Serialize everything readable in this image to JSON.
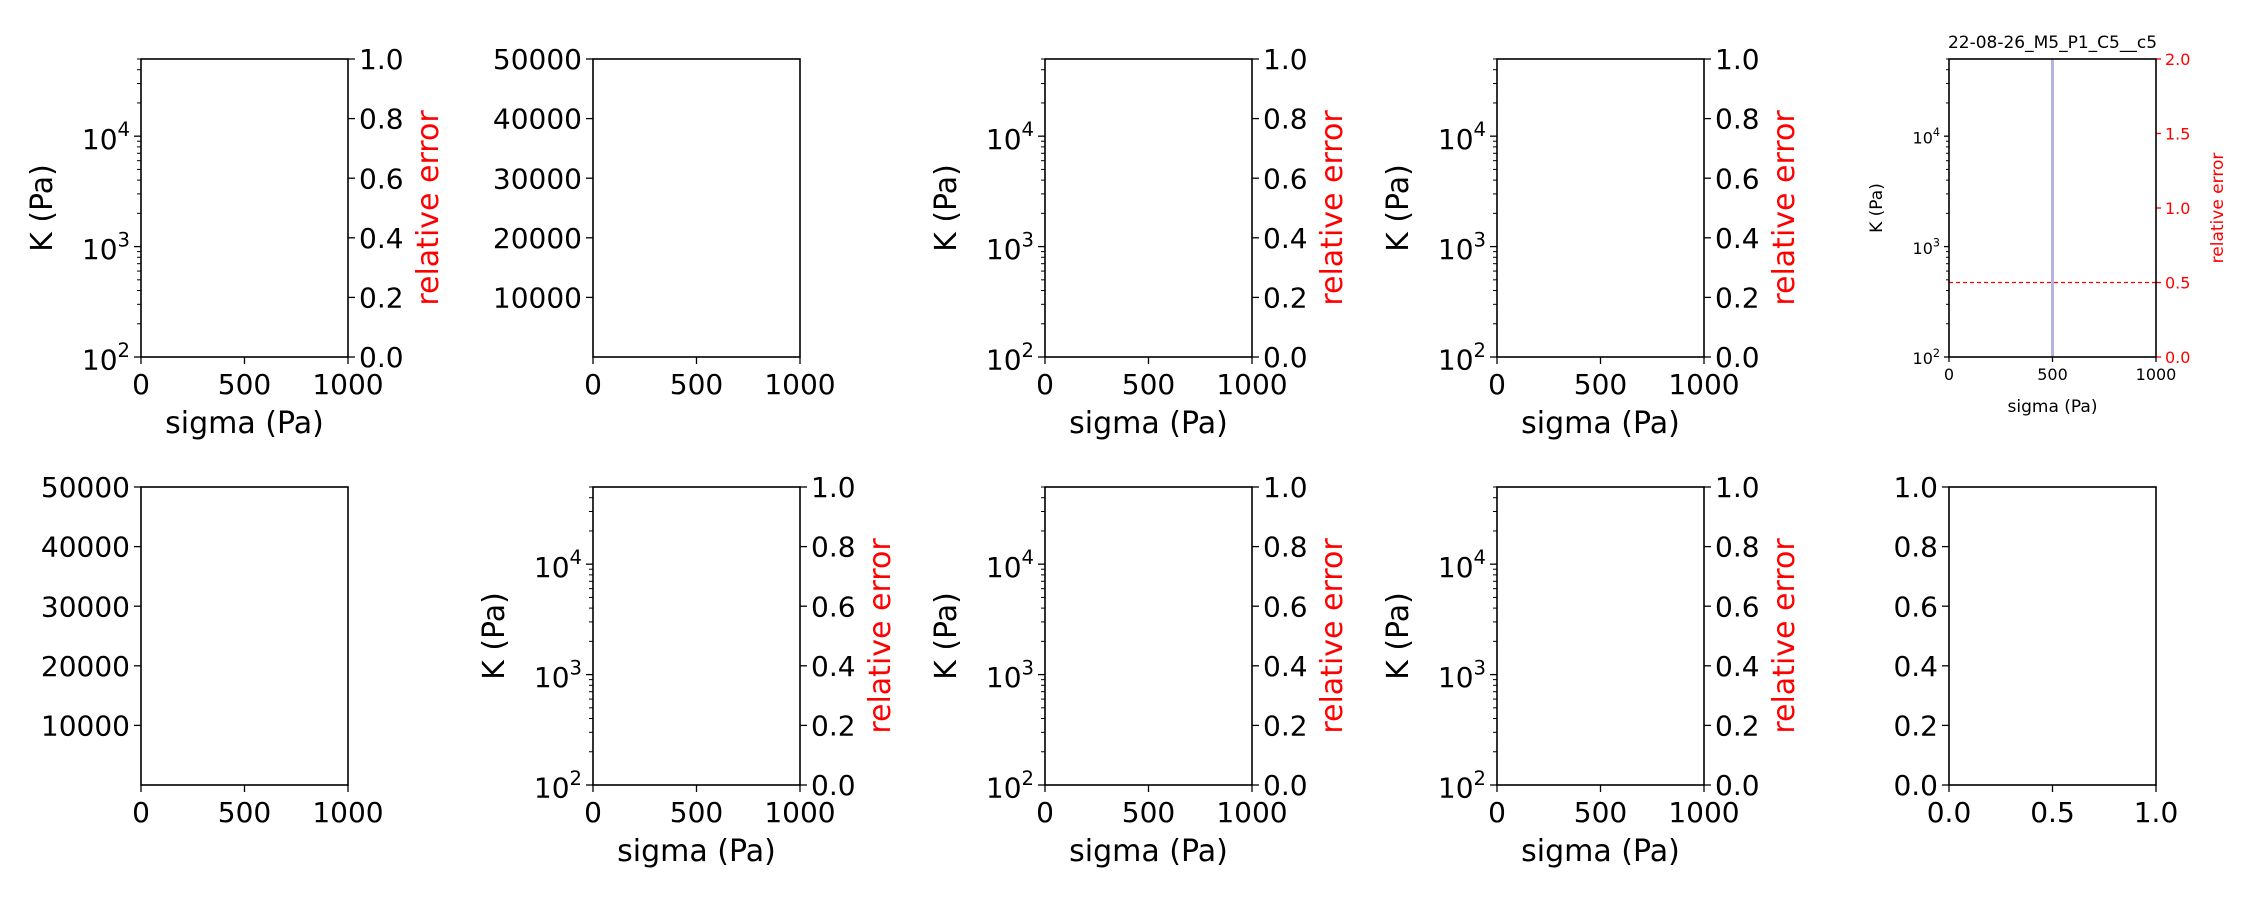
{
  "colors": {
    "axis": "#000000",
    "secondary": "#ff0000",
    "vline": "#b3b3e6"
  },
  "chart_data": [
    {
      "type": "line",
      "kind": "log-twin",
      "xlim": [
        0,
        1000
      ],
      "xticks": [
        0,
        500,
        1000
      ],
      "ylim": [
        100,
        50000
      ],
      "yscale": "log",
      "yticks": [
        {
          "v": 100,
          "b": "10",
          "e": "2"
        },
        {
          "v": 1000,
          "b": "10",
          "e": "3"
        },
        {
          "v": 10000,
          "b": "10",
          "e": "4"
        }
      ],
      "y2lim": [
        0,
        1
      ],
      "y2ticks": [
        "0.0",
        "0.2",
        "0.4",
        "0.6",
        "0.8",
        "1.0"
      ],
      "xlabel": "sigma (Pa)",
      "ylabel": "K (Pa)",
      "y2label": "relative error",
      "title": ""
    },
    {
      "type": "line",
      "kind": "linear",
      "xlim": [
        0,
        1000
      ],
      "xticks": [
        0,
        500,
        1000
      ],
      "ylim": [
        0,
        50000
      ],
      "yticks": [
        10000,
        20000,
        30000,
        40000,
        50000
      ],
      "xlabel": "",
      "ylabel": "",
      "title": ""
    },
    {
      "type": "line",
      "kind": "log-twin",
      "xlim": [
        0,
        1000
      ],
      "xticks": [
        0,
        500,
        1000
      ],
      "ylim": [
        100,
        50000
      ],
      "yscale": "log",
      "yticks": [
        {
          "v": 100,
          "b": "10",
          "e": "2"
        },
        {
          "v": 1000,
          "b": "10",
          "e": "3"
        },
        {
          "v": 10000,
          "b": "10",
          "e": "4"
        }
      ],
      "y2lim": [
        0,
        1
      ],
      "y2ticks": [
        "0.0",
        "0.2",
        "0.4",
        "0.6",
        "0.8",
        "1.0"
      ],
      "xlabel": "sigma (Pa)",
      "ylabel": "K (Pa)",
      "y2label": "relative error",
      "title": ""
    },
    {
      "type": "line",
      "kind": "log-twin",
      "xlim": [
        0,
        1000
      ],
      "xticks": [
        0,
        500,
        1000
      ],
      "ylim": [
        100,
        50000
      ],
      "yscale": "log",
      "yticks": [
        {
          "v": 100,
          "b": "10",
          "e": "2"
        },
        {
          "v": 1000,
          "b": "10",
          "e": "3"
        },
        {
          "v": 10000,
          "b": "10",
          "e": "4"
        }
      ],
      "y2lim": [
        0,
        1
      ],
      "y2ticks": [
        "0.0",
        "0.2",
        "0.4",
        "0.6",
        "0.8",
        "1.0"
      ],
      "xlabel": "sigma (Pa)",
      "ylabel": "K (Pa)",
      "y2label": "relative error",
      "title": ""
    },
    {
      "type": "line",
      "kind": "log-twin",
      "small": true,
      "xlim": [
        0,
        1000
      ],
      "xticks": [
        0,
        500,
        1000
      ],
      "ylim": [
        100,
        50000
      ],
      "yscale": "log",
      "yticks": [
        {
          "v": 100,
          "b": "10",
          "e": "2"
        },
        {
          "v": 1000,
          "b": "10",
          "e": "3"
        },
        {
          "v": 10000,
          "b": "10",
          "e": "4"
        }
      ],
      "y2lim": [
        0,
        2
      ],
      "y2ticks": [
        "0.0",
        "0.5",
        "1.0",
        "1.5",
        "2.0"
      ],
      "xlabel": "sigma (Pa)",
      "ylabel": "K (Pa)",
      "y2label": "relative error",
      "title": "22-08-26_M5_P1_C5__c5",
      "vline_x": 500,
      "hline_y2": 0.5
    },
    {
      "type": "line",
      "kind": "linear",
      "xlim": [
        0,
        1000
      ],
      "xticks": [
        0,
        500,
        1000
      ],
      "ylim": [
        0,
        50000
      ],
      "yticks": [
        10000,
        20000,
        30000,
        40000,
        50000
      ],
      "xlabel": "",
      "ylabel": "",
      "title": ""
    },
    {
      "type": "line",
      "kind": "log-twin",
      "xlim": [
        0,
        1000
      ],
      "xticks": [
        0,
        500,
        1000
      ],
      "ylim": [
        100,
        50000
      ],
      "yscale": "log",
      "yticks": [
        {
          "v": 100,
          "b": "10",
          "e": "2"
        },
        {
          "v": 1000,
          "b": "10",
          "e": "3"
        },
        {
          "v": 10000,
          "b": "10",
          "e": "4"
        }
      ],
      "y2lim": [
        0,
        1
      ],
      "y2ticks": [
        "0.0",
        "0.2",
        "0.4",
        "0.6",
        "0.8",
        "1.0"
      ],
      "xlabel": "sigma (Pa)",
      "ylabel": "K (Pa)",
      "y2label": "relative error",
      "title": ""
    },
    {
      "type": "line",
      "kind": "log-twin",
      "xlim": [
        0,
        1000
      ],
      "xticks": [
        0,
        500,
        1000
      ],
      "ylim": [
        100,
        50000
      ],
      "yscale": "log",
      "yticks": [
        {
          "v": 100,
          "b": "10",
          "e": "2"
        },
        {
          "v": 1000,
          "b": "10",
          "e": "3"
        },
        {
          "v": 10000,
          "b": "10",
          "e": "4"
        }
      ],
      "y2lim": [
        0,
        1
      ],
      "y2ticks": [
        "0.0",
        "0.2",
        "0.4",
        "0.6",
        "0.8",
        "1.0"
      ],
      "xlabel": "sigma (Pa)",
      "ylabel": "K (Pa)",
      "y2label": "relative error",
      "title": ""
    },
    {
      "type": "line",
      "kind": "log-twin",
      "xlim": [
        0,
        1000
      ],
      "xticks": [
        0,
        500,
        1000
      ],
      "ylim": [
        100,
        50000
      ],
      "yscale": "log",
      "yticks": [
        {
          "v": 100,
          "b": "10",
          "e": "2"
        },
        {
          "v": 1000,
          "b": "10",
          "e": "3"
        },
        {
          "v": 10000,
          "b": "10",
          "e": "4"
        }
      ],
      "y2lim": [
        0,
        1
      ],
      "y2ticks": [
        "0.0",
        "0.2",
        "0.4",
        "0.6",
        "0.8",
        "1.0"
      ],
      "xlabel": "sigma (Pa)",
      "ylabel": "K (Pa)",
      "y2label": "relative error",
      "title": ""
    },
    {
      "type": "line",
      "kind": "plain",
      "xlim": [
        0,
        1
      ],
      "xticks": [
        "0.0",
        "0.5",
        "1.0"
      ],
      "ylim": [
        0,
        1
      ],
      "yticks": [
        "0.0",
        "0.2",
        "0.4",
        "0.6",
        "0.8",
        "1.0"
      ],
      "xlabel": "",
      "ylabel": "",
      "title": ""
    }
  ]
}
